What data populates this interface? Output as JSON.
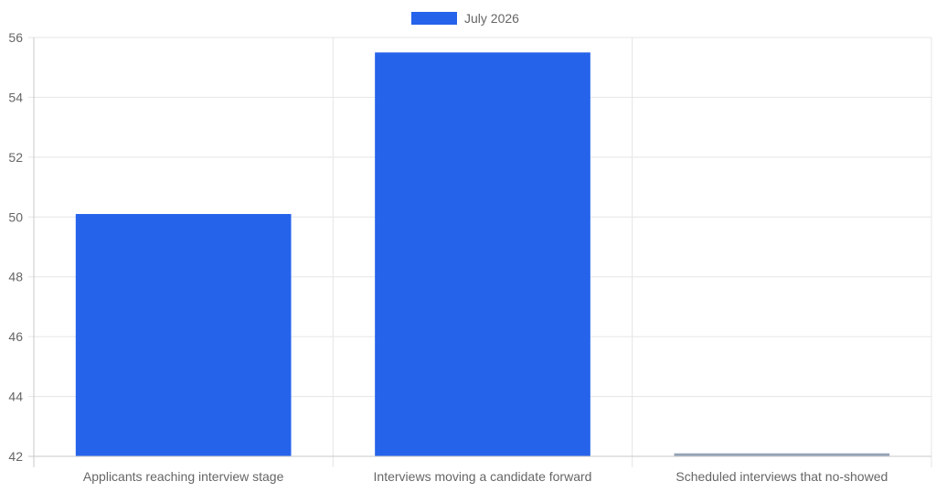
{
  "chart_data": {
    "type": "bar",
    "categories": [
      "Applicants reaching interview stage",
      "Interviews moving a candidate forward",
      "Scheduled interviews that no-showed"
    ],
    "series": [
      {
        "name": "July 2026",
        "values": [
          50.1,
          55.5,
          42.1
        ],
        "colors": [
          "#2563eb",
          "#2563eb",
          "#94a3b8"
        ]
      }
    ],
    "ylim": [
      42,
      56
    ],
    "yticks": [
      42,
      44,
      46,
      48,
      50,
      52,
      54,
      56
    ],
    "grid": true,
    "legend_position": "top-center",
    "legend_color": "#2563eb"
  }
}
